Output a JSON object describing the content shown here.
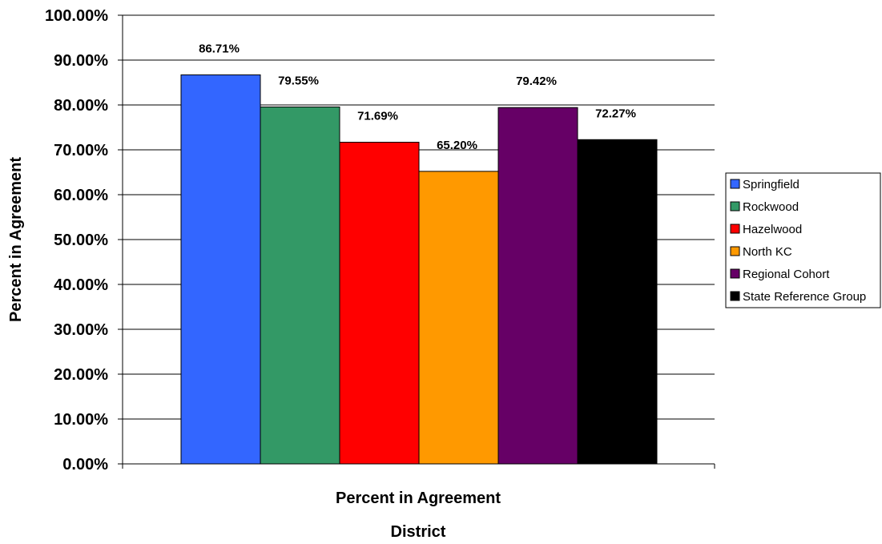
{
  "chart_data": {
    "type": "bar",
    "ylabel": "Percent in Agreement",
    "xlabel": "District",
    "category_label": "Percent in Agreement",
    "ylim": [
      0,
      100
    ],
    "yticks": [
      "0.00%",
      "10.00%",
      "20.00%",
      "30.00%",
      "40.00%",
      "50.00%",
      "60.00%",
      "70.00%",
      "80.00%",
      "90.00%",
      "100.00%"
    ],
    "grid": true,
    "legend_position": "right",
    "series": [
      {
        "name": "Springfield",
        "value": 86.71,
        "label": "86.71%",
        "color": "#3366FF"
      },
      {
        "name": "Rockwood",
        "value": 79.55,
        "label": "79.55%",
        "color": "#339966"
      },
      {
        "name": "Hazelwood",
        "value": 71.69,
        "label": "71.69%",
        "color": "#FF0000"
      },
      {
        "name": "North KC",
        "value": 65.2,
        "label": "65.20%",
        "color": "#FF9900"
      },
      {
        "name": "Regional Cohort",
        "value": 79.42,
        "label": "79.42%",
        "color": "#660066"
      },
      {
        "name": "State Reference Group",
        "value": 72.27,
        "label": "72.27%",
        "color": "#000000"
      }
    ]
  }
}
